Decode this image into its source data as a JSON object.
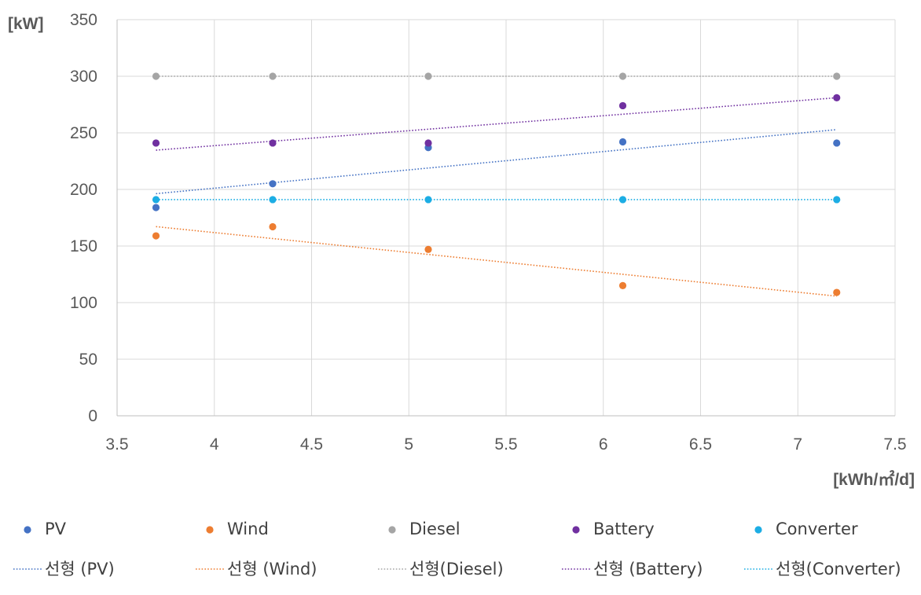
{
  "chart_data": {
    "type": "scatter",
    "title": "",
    "ylabel": "[kW]",
    "xlabel": "[kWh/㎡/d]",
    "xlim": [
      3.5,
      7.5
    ],
    "ylim": [
      0,
      350
    ],
    "x_ticks": [
      "3.5",
      "4",
      "4.5",
      "5",
      "5.5",
      "6",
      "6.5",
      "7",
      "7.5"
    ],
    "y_ticks": [
      "0",
      "50",
      "100",
      "150",
      "200",
      "250",
      "300",
      "350"
    ],
    "grid": true,
    "legend_position": "bottom",
    "x": [
      3.7,
      4.3,
      5.1,
      6.1,
      7.2
    ],
    "series": [
      {
        "name": "PV",
        "color": "#4472C4",
        "values": [
          184,
          205,
          237,
          242,
          241
        ]
      },
      {
        "name": "Wind",
        "color": "#ED7D31",
        "values": [
          159,
          167,
          147,
          115,
          109
        ]
      },
      {
        "name": "Diesel",
        "color": "#A5A5A5",
        "values": [
          300,
          300,
          300,
          300,
          300
        ]
      },
      {
        "name": "Battery",
        "color": "#7030A0",
        "values": [
          241,
          241,
          241,
          274,
          281
        ]
      },
      {
        "name": "Converter",
        "color": "#1CADE4",
        "values": [
          191,
          191,
          191,
          191,
          191
        ]
      }
    ],
    "trendlines": [
      {
        "name": "선형 (PV)",
        "series": "PV",
        "type": "linear"
      },
      {
        "name": "선형 (Wind)",
        "series": "Wind",
        "type": "linear"
      },
      {
        "name": "선형(Diesel)",
        "series": "Diesel",
        "type": "linear"
      },
      {
        "name": "선형 (Battery)",
        "series": "Battery",
        "type": "linear"
      },
      {
        "name": "선형(Converter)",
        "series": "Converter",
        "type": "linear"
      }
    ]
  }
}
